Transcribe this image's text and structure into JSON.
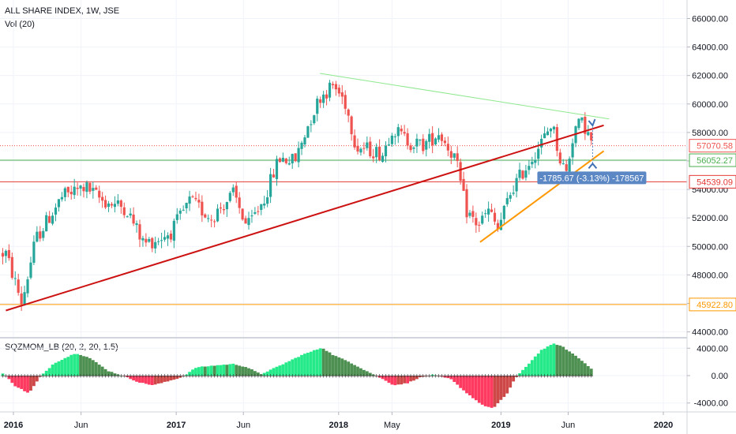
{
  "header": {
    "symbol_title": "ALL SHARE INDEX, 1W, JSE",
    "volume_label": "Vol (20)",
    "oscillator_label": "SQZMOM_LB (20, 2, 20, 1.5)"
  },
  "colors": {
    "up": "#26a69a",
    "down": "#ef5350",
    "triangle_top": "#8ee88e",
    "trendline_red": "#cc1111",
    "trendline_orange": "#ff9800",
    "level_green": "#4caf50",
    "level_red": "#e53935",
    "level_orange": "#ff9800",
    "mom_pos_strong": "#00e676",
    "mom_pos_weak": "#2e7d32",
    "mom_neg_strong": "#ff1744",
    "mom_neg_weak": "#c62828",
    "measure_bg": "#5b87c4"
  },
  "chart_data": [
    {
      "type": "candlestick",
      "title": "ALL SHARE INDEX, 1W, JSE",
      "x_ticks": [
        "2016",
        "Jun",
        "2017",
        "Jun",
        "2018",
        "May",
        "2019",
        "Jun",
        "2020"
      ],
      "x_tick_dates": [
        "2016-01-01",
        "2016-06-01",
        "2017-01-01",
        "2017-06-01",
        "2018-01-01",
        "2018-05-01",
        "2019-01-01",
        "2019-06-01",
        "2020-01-01"
      ],
      "y_ticks": [
        "44000.00",
        "46000.00",
        "48000.00",
        "50000.00",
        "52000.00",
        "54000.00",
        "56000.00",
        "58000.00",
        "60000.00",
        "62000.00",
        "64000.00",
        "66000.00"
      ],
      "ylim": [
        43700,
        67300
      ],
      "price_labels": [
        {
          "text": "57070.58",
          "value": 57070.58,
          "color": "#ef5350"
        },
        {
          "text": "56052.27",
          "value": 56052.27,
          "color": "#4caf50"
        },
        {
          "text": "54539.09",
          "value": 54539.09,
          "color": "#e53935"
        },
        {
          "text": "45922.80",
          "value": 45922.8,
          "color": "#ff9800"
        }
      ],
      "horizontal_levels": [
        {
          "value": 57070.58,
          "color": "#ef5350",
          "style": "dotted"
        },
        {
          "value": 56052.27,
          "color": "#4caf50",
          "style": "solid"
        },
        {
          "value": 54539.09,
          "color": "#e53935",
          "style": "solid"
        },
        {
          "value": 45922.8,
          "color": "#ff9800",
          "style": "solid"
        }
      ],
      "trendlines": [
        {
          "name": "descending resistance",
          "color": "#8ee88e",
          "from": [
            "2017-11-20",
            62150
          ],
          "to": [
            "2019-09-01",
            58950
          ]
        },
        {
          "name": "long-term support",
          "color": "#cc1111",
          "from": [
            "2015-12-15",
            45500
          ],
          "to": [
            "2019-08-20",
            58500
          ]
        },
        {
          "name": "2019 support",
          "color": "#ff9800",
          "from": [
            "2018-11-15",
            50300
          ],
          "to": [
            "2019-08-20",
            56700
          ]
        }
      ],
      "measurement": {
        "text": "-1785.67 (-3.13%) -178567"
      },
      "key_points": [
        {
          "date": "2015-12-15",
          "value": 49500
        },
        {
          "date": "2016-01-20",
          "value": 46000
        },
        {
          "date": "2016-02-20",
          "value": 50500
        },
        {
          "date": "2016-04-20",
          "value": 53500
        },
        {
          "date": "2016-06-10",
          "value": 54200
        },
        {
          "date": "2016-07-20",
          "value": 53200
        },
        {
          "date": "2016-09-10",
          "value": 52700
        },
        {
          "date": "2016-10-20",
          "value": 50200
        },
        {
          "date": "2016-11-20",
          "value": 50500
        },
        {
          "date": "2016-12-20",
          "value": 51000
        },
        {
          "date": "2017-02-01",
          "value": 53200
        },
        {
          "date": "2017-03-20",
          "value": 52000
        },
        {
          "date": "2017-05-10",
          "value": 53700
        },
        {
          "date": "2017-06-10",
          "value": 51300
        },
        {
          "date": "2017-07-20",
          "value": 53500
        },
        {
          "date": "2017-08-20",
          "value": 56200
        },
        {
          "date": "2017-09-25",
          "value": 56000
        },
        {
          "date": "2017-10-25",
          "value": 58600
        },
        {
          "date": "2017-11-20",
          "value": 60500
        },
        {
          "date": "2017-12-20",
          "value": 61300
        },
        {
          "date": "2018-01-15",
          "value": 60200
        },
        {
          "date": "2018-02-10",
          "value": 57000
        },
        {
          "date": "2018-03-10",
          "value": 56800
        },
        {
          "date": "2018-04-10",
          "value": 56500
        },
        {
          "date": "2018-05-01",
          "value": 58300
        },
        {
          "date": "2018-06-10",
          "value": 57300
        },
        {
          "date": "2018-07-10",
          "value": 57100
        },
        {
          "date": "2018-08-15",
          "value": 58000
        },
        {
          "date": "2018-09-20",
          "value": 56200
        },
        {
          "date": "2018-10-15",
          "value": 52500
        },
        {
          "date": "2018-11-10",
          "value": 51500
        },
        {
          "date": "2018-12-05",
          "value": 52500
        },
        {
          "date": "2018-12-25",
          "value": 51200
        },
        {
          "date": "2019-01-25",
          "value": 54000
        },
        {
          "date": "2019-03-01",
          "value": 55700
        },
        {
          "date": "2019-04-10",
          "value": 57700
        },
        {
          "date": "2019-04-25",
          "value": 58700
        },
        {
          "date": "2019-05-15",
          "value": 56000
        },
        {
          "date": "2019-05-28",
          "value": 55200
        },
        {
          "date": "2019-06-15",
          "value": 58300
        },
        {
          "date": "2019-07-05",
          "value": 58700
        },
        {
          "date": "2019-07-20",
          "value": 57500
        },
        {
          "date": "2019-07-28",
          "value": 57070.58
        }
      ]
    },
    {
      "type": "histogram",
      "title": "SQZMOM_LB (20, 2, 20, 1.5)",
      "y_ticks": [
        "-4000.00",
        "0.00",
        "4000.00"
      ],
      "ylim": [
        -5300,
        5300
      ],
      "zero_line": 0,
      "key_points": [
        {
          "date": "2015-12-10",
          "value": 300
        },
        {
          "date": "2016-01-05",
          "value": -1500
        },
        {
          "date": "2016-02-05",
          "value": -2600
        },
        {
          "date": "2016-03-01",
          "value": -200
        },
        {
          "date": "2016-04-01",
          "value": 1800
        },
        {
          "date": "2016-05-20",
          "value": 3300
        },
        {
          "date": "2016-06-20",
          "value": 2600
        },
        {
          "date": "2016-08-01",
          "value": 700
        },
        {
          "date": "2016-09-10",
          "value": -200
        },
        {
          "date": "2016-10-10",
          "value": -1000
        },
        {
          "date": "2016-11-10",
          "value": -1400
        },
        {
          "date": "2016-12-10",
          "value": -900
        },
        {
          "date": "2017-01-15",
          "value": -200
        },
        {
          "date": "2017-02-15",
          "value": 1200
        },
        {
          "date": "2017-04-01",
          "value": 1500
        },
        {
          "date": "2017-05-10",
          "value": 1700
        },
        {
          "date": "2017-06-10",
          "value": 1200
        },
        {
          "date": "2017-07-10",
          "value": 200
        },
        {
          "date": "2017-08-20",
          "value": 1400
        },
        {
          "date": "2017-10-10",
          "value": 3000
        },
        {
          "date": "2017-11-25",
          "value": 4100
        },
        {
          "date": "2017-12-20",
          "value": 3000
        },
        {
          "date": "2018-01-25",
          "value": 2000
        },
        {
          "date": "2018-03-01",
          "value": 800
        },
        {
          "date": "2018-04-01",
          "value": -200
        },
        {
          "date": "2018-05-05",
          "value": -1400
        },
        {
          "date": "2018-06-05",
          "value": -1100
        },
        {
          "date": "2018-07-01",
          "value": -300
        },
        {
          "date": "2018-08-01",
          "value": 100
        },
        {
          "date": "2018-09-10",
          "value": -500
        },
        {
          "date": "2018-10-15",
          "value": -2500
        },
        {
          "date": "2018-11-20",
          "value": -4300
        },
        {
          "date": "2018-12-15",
          "value": -4800
        },
        {
          "date": "2019-01-15",
          "value": -2600
        },
        {
          "date": "2019-02-01",
          "value": -500
        },
        {
          "date": "2019-03-01",
          "value": 1500
        },
        {
          "date": "2019-04-01",
          "value": 3700
        },
        {
          "date": "2019-05-01",
          "value": 4700
        },
        {
          "date": "2019-05-20",
          "value": 4200
        },
        {
          "date": "2019-06-20",
          "value": 2800
        },
        {
          "date": "2019-07-28",
          "value": 800
        }
      ]
    }
  ]
}
